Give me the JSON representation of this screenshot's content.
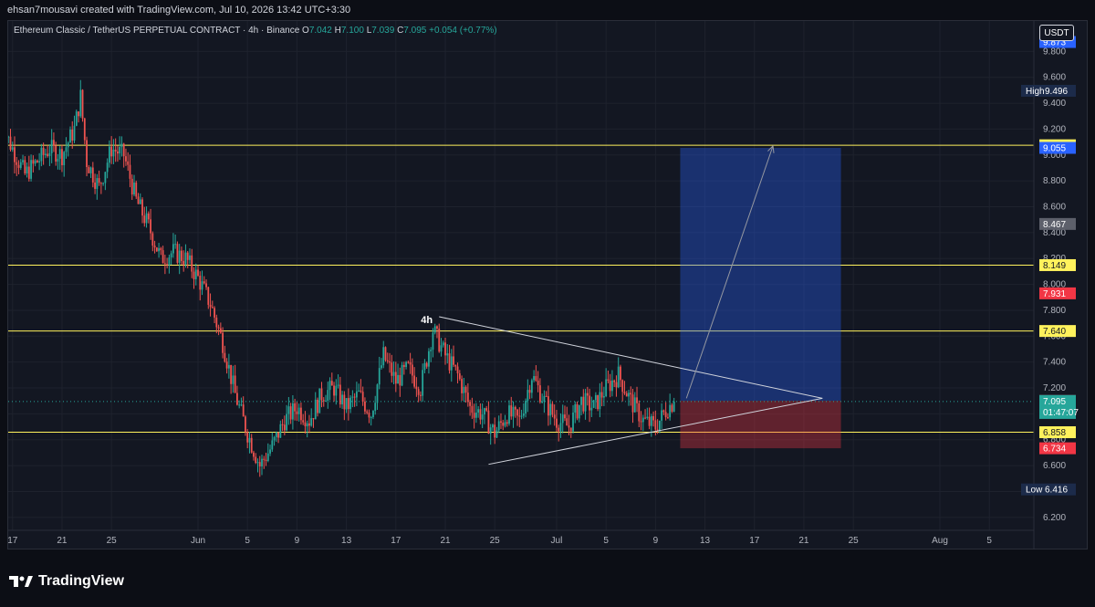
{
  "header": {
    "credit": "ehsan7mousavi created with TradingView.com, Jul 10, 2026 13:42 UTC+3:30"
  },
  "legend": {
    "symbol": "Ethereum Classic / TetherUS PERPETUAL CONTRACT · 4h · Binance",
    "o_label": "O",
    "o_value": "7.042",
    "h_label": "H",
    "h_value": "7.100",
    "l_label": "L",
    "l_value": "7.039",
    "c_label": "C",
    "c_value": "7.095",
    "change": "+0.054 (+0.77%)"
  },
  "currency_button": "USDT",
  "brand": {
    "name": "TradingView"
  },
  "colors": {
    "background": "#131722",
    "up": "#26a69a",
    "down": "#ef5350",
    "level_line": "#fff25c",
    "target_zone": "#2962ff",
    "stop_zone": "#f23645"
  },
  "chart_data": {
    "type": "candlestick",
    "symbol": "Ethereum Classic / TetherUS PERPETUAL CONTRACT",
    "timeframe": "4h",
    "exchange": "Binance",
    "ylim": [
      6.1,
      10.0
    ],
    "y_ticks": [
      "9.800",
      "9.600",
      "9.400",
      "9.200",
      "9.000",
      "8.800",
      "8.600",
      "8.400",
      "8.200",
      "8.000",
      "7.800",
      "7.600",
      "7.400",
      "7.200",
      "7.000",
      "6.800",
      "6.600",
      "6.400",
      "6.200"
    ],
    "x_ticks": [
      {
        "label": "17",
        "day": -15
      },
      {
        "label": "21",
        "day": -11
      },
      {
        "label": "25",
        "day": -7
      },
      {
        "label": "Jun",
        "day": 0
      },
      {
        "label": "5",
        "day": 4
      },
      {
        "label": "9",
        "day": 8
      },
      {
        "label": "13",
        "day": 12
      },
      {
        "label": "17",
        "day": 16
      },
      {
        "label": "21",
        "day": 20
      },
      {
        "label": "25",
        "day": 24
      },
      {
        "label": "Jul",
        "day": 29
      },
      {
        "label": "5",
        "day": 33
      },
      {
        "label": "9",
        "day": 37
      },
      {
        "label": "13",
        "day": 41
      },
      {
        "label": "17",
        "day": 45
      },
      {
        "label": "21",
        "day": 49
      },
      {
        "label": "25",
        "day": 53
      },
      {
        "label": "Aug",
        "day": 60
      },
      {
        "label": "5",
        "day": 64
      }
    ],
    "price_path": [
      [
        -16,
        9.25
      ],
      [
        -15,
        9.05
      ],
      [
        -14,
        8.85
      ],
      [
        -13,
        8.95
      ],
      [
        -12,
        9.05
      ],
      [
        -11,
        9.0
      ],
      [
        -10,
        9.2
      ],
      [
        -9.5,
        9.45
      ],
      [
        -9,
        8.95
      ],
      [
        -8,
        8.75
      ],
      [
        -7,
        9.05
      ],
      [
        -6,
        9.0
      ],
      [
        -5,
        8.65
      ],
      [
        -4,
        8.45
      ],
      [
        -3,
        8.2
      ],
      [
        -2,
        8.25
      ],
      [
        -1,
        8.2
      ],
      [
        0,
        8.05
      ],
      [
        1,
        7.85
      ],
      [
        2,
        7.55
      ],
      [
        3,
        7.15
      ],
      [
        4,
        6.85
      ],
      [
        5,
        6.6
      ],
      [
        6,
        6.75
      ],
      [
        7,
        6.95
      ],
      [
        8,
        7.05
      ],
      [
        9,
        6.95
      ],
      [
        10,
        7.15
      ],
      [
        11,
        7.2
      ],
      [
        12,
        7.05
      ],
      [
        13,
        7.15
      ],
      [
        14,
        7.0
      ],
      [
        15,
        7.45
      ],
      [
        16,
        7.25
      ],
      [
        17,
        7.35
      ],
      [
        18,
        7.2
      ],
      [
        19,
        7.65
      ],
      [
        20,
        7.45
      ],
      [
        21,
        7.3
      ],
      [
        22,
        7.05
      ],
      [
        23,
        7.0
      ],
      [
        24,
        6.85
      ],
      [
        25,
        7.0
      ],
      [
        26,
        6.95
      ],
      [
        27,
        7.3
      ],
      [
        28,
        7.1
      ],
      [
        29,
        6.95
      ],
      [
        30,
        6.9
      ],
      [
        31,
        7.1
      ],
      [
        32,
        7.05
      ],
      [
        33,
        7.2
      ],
      [
        34,
        7.3
      ],
      [
        35,
        7.1
      ],
      [
        36,
        6.95
      ],
      [
        37,
        6.9
      ],
      [
        38,
        7.05
      ],
      [
        38.5,
        7.095
      ]
    ],
    "horizontal_levels": [
      9.075,
      8.149,
      7.64,
      6.858
    ],
    "price_labels": [
      {
        "value": 9.873,
        "text": "9.873",
        "kind": "blue"
      },
      {
        "value": 9.496,
        "text": "9.496",
        "prefix": "High",
        "kind": "navy"
      },
      {
        "value": 9.075,
        "text": "9.075",
        "kind": "yellow"
      },
      {
        "value": 9.055,
        "text": "9.055",
        "kind": "blue"
      },
      {
        "value": 8.467,
        "text": "8.467",
        "kind": "gray"
      },
      {
        "value": 8.149,
        "text": "8.149",
        "kind": "yellow"
      },
      {
        "value": 7.931,
        "text": "7.931",
        "kind": "red"
      },
      {
        "value": 7.64,
        "text": "7.640",
        "kind": "yellow"
      },
      {
        "value": 7.101,
        "text": "7.101",
        "kind": "gray"
      },
      {
        "value": 7.095,
        "text": "7.095",
        "subtext": "01:47:07",
        "kind": "green"
      },
      {
        "value": 6.858,
        "text": "6.858",
        "kind": "yellow"
      },
      {
        "value": 6.734,
        "text": "6.734",
        "kind": "red"
      },
      {
        "value": 6.416,
        "text": "6.416",
        "prefix": "Low",
        "kind": "navy"
      }
    ],
    "position": {
      "type": "long",
      "entry": 7.101,
      "target": 9.055,
      "stop": 6.734,
      "start_day": 39,
      "end_day": 52
    },
    "triangle": {
      "upper": [
        [
          19.5,
          7.75
        ],
        [
          50.5,
          7.12
        ]
      ],
      "lower": [
        [
          23.5,
          6.61
        ],
        [
          50.5,
          7.12
        ]
      ]
    },
    "annotation": {
      "text": "4h",
      "day": 18.5,
      "value": 7.7
    },
    "projection": {
      "from": [
        39.5,
        7.12
      ],
      "to": [
        46.5,
        9.07
      ]
    }
  }
}
